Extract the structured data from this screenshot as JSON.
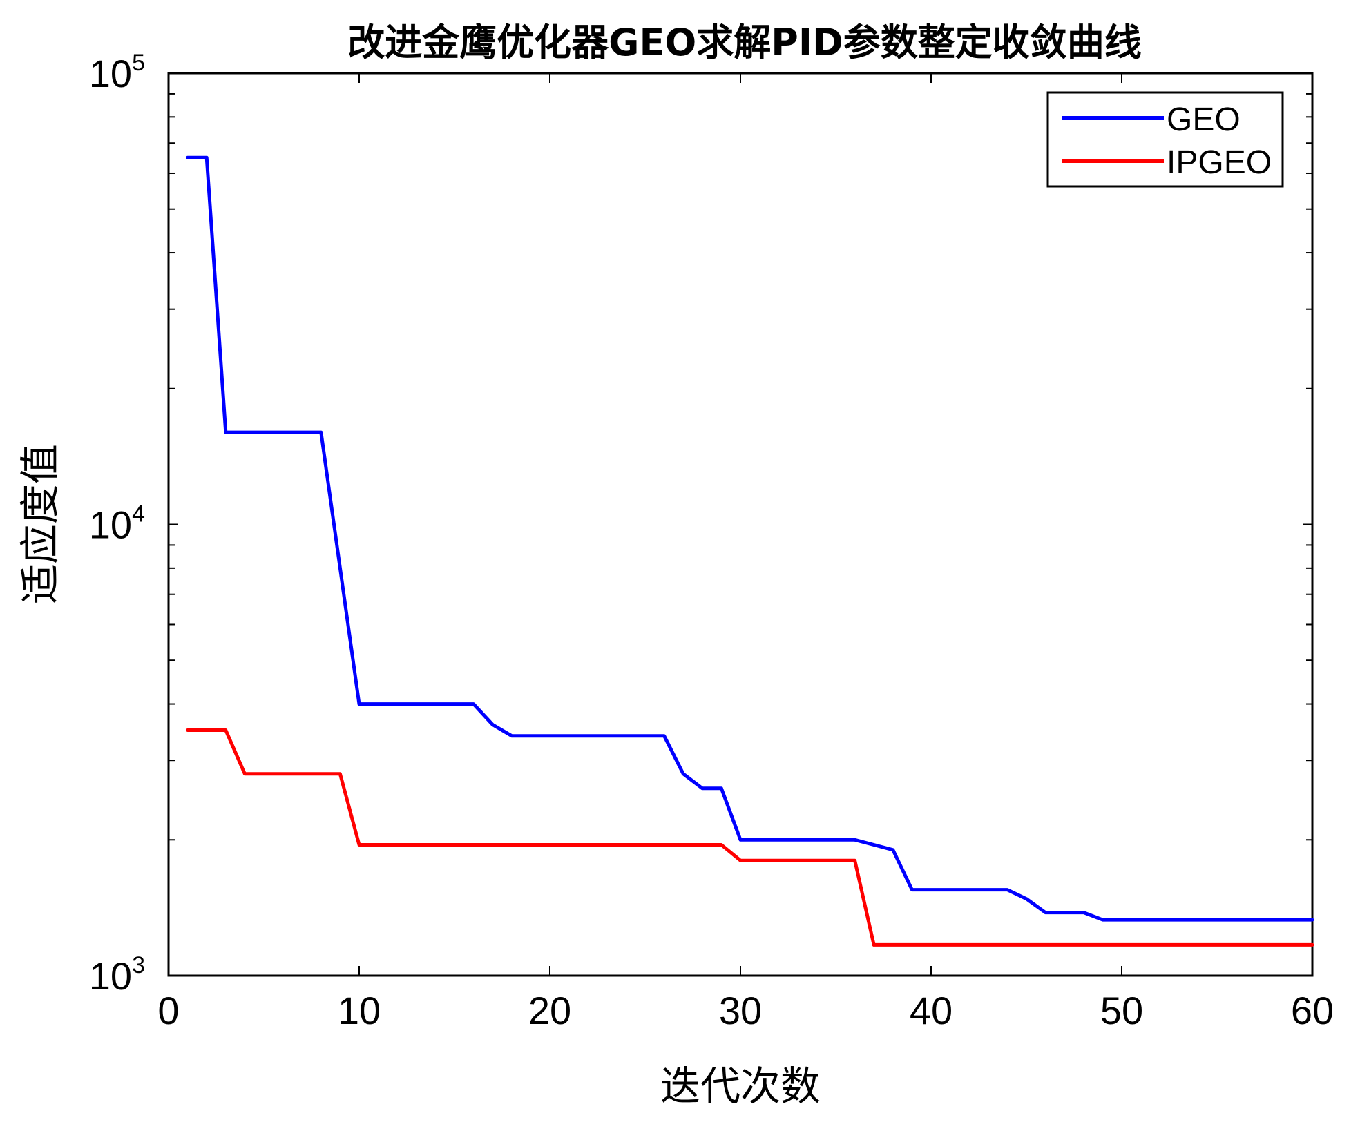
{
  "chart_data": {
    "type": "line",
    "title": "改进金鹰优化器GEO求解PID参数整定收敛曲线",
    "xlabel": "迭代次数",
    "ylabel": "适应度值",
    "xlim": [
      0,
      60
    ],
    "ylim": [
      1000,
      100000
    ],
    "y_scale": "log",
    "grid": false,
    "legend_position": "top-right",
    "x_ticks": [
      0,
      10,
      20,
      30,
      40,
      50,
      60
    ],
    "x_tick_labels": [
      "0",
      "10",
      "20",
      "30",
      "40",
      "50",
      "60"
    ],
    "y_ticks": [
      1000,
      10000,
      100000
    ],
    "y_tick_labels": [
      {
        "base": "10",
        "exp": "3"
      },
      {
        "base": "10",
        "exp": "4"
      },
      {
        "base": "10",
        "exp": "5"
      }
    ],
    "series": [
      {
        "name": "GEO",
        "color": "#0000ff",
        "points": [
          [
            1,
            65000
          ],
          [
            2,
            65000
          ],
          [
            3,
            16000
          ],
          [
            8,
            16000
          ],
          [
            10,
            4000
          ],
          [
            16,
            4000
          ],
          [
            17,
            3600
          ],
          [
            18,
            3400
          ],
          [
            26,
            3400
          ],
          [
            27,
            2800
          ],
          [
            28,
            2600
          ],
          [
            29,
            2600
          ],
          [
            30,
            2000
          ],
          [
            36,
            2000
          ],
          [
            38,
            1900
          ],
          [
            39,
            1550
          ],
          [
            44,
            1550
          ],
          [
            45,
            1480
          ],
          [
            46,
            1380
          ],
          [
            48,
            1380
          ],
          [
            49,
            1330
          ],
          [
            60,
            1330
          ]
        ]
      },
      {
        "name": "IPGEO",
        "color": "#ff0000",
        "points": [
          [
            1,
            3500
          ],
          [
            3,
            3500
          ],
          [
            4,
            2800
          ],
          [
            9,
            2800
          ],
          [
            10,
            1950
          ],
          [
            29,
            1950
          ],
          [
            30,
            1800
          ],
          [
            36,
            1800
          ],
          [
            37,
            1170
          ],
          [
            60,
            1170
          ]
        ]
      }
    ]
  }
}
